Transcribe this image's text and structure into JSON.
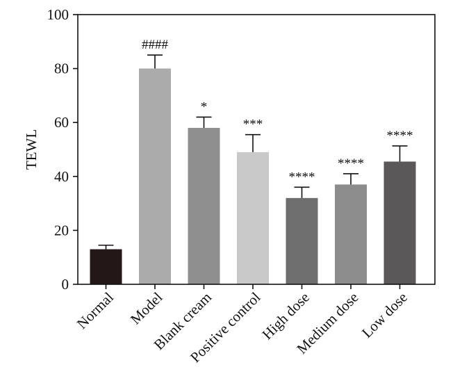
{
  "chart_data": {
    "type": "bar",
    "title": "",
    "xlabel": "",
    "ylabel": "TEWL",
    "ylim": [
      0,
      100
    ],
    "yticks": [
      0,
      20,
      40,
      60,
      80,
      100
    ],
    "grid": false,
    "categories": [
      "Normal",
      "Model",
      "Blank cream",
      "Positive control",
      "High dose",
      "Medium dose",
      "Low dose"
    ],
    "values": [
      13,
      80,
      58,
      49,
      32,
      37,
      45.5
    ],
    "errors": [
      1.5,
      5,
      4,
      6.5,
      4,
      4,
      5.8
    ],
    "annotations": [
      "",
      "####",
      "*",
      "***",
      "****",
      "****",
      "****"
    ],
    "colors": [
      "#231815",
      "#ababab",
      "#8f8f8f",
      "#c9c9c9",
      "#6e6e6e",
      "#8c8c8c",
      "#5a5858"
    ]
  }
}
